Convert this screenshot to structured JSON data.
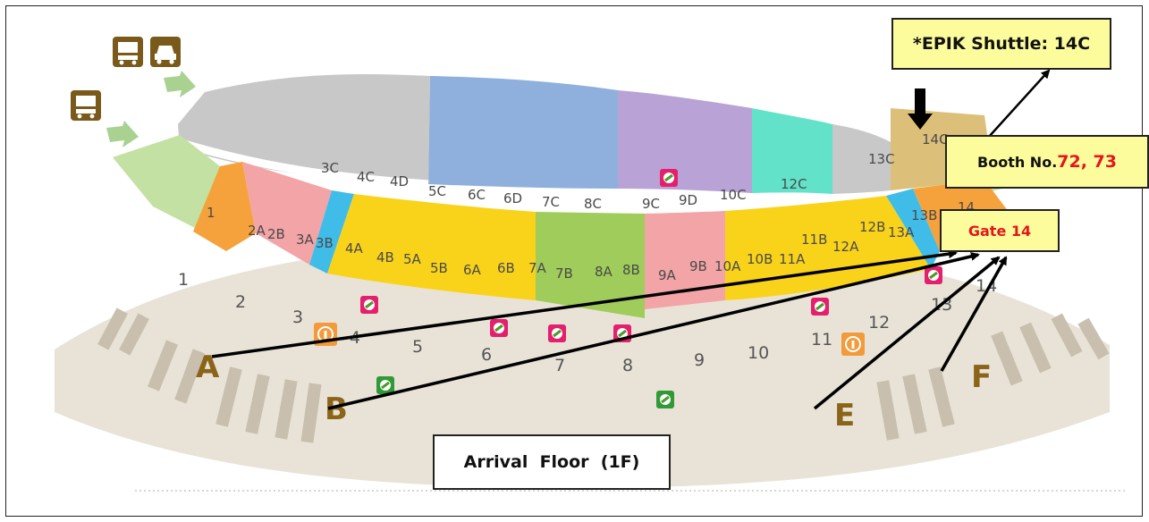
{
  "callouts": {
    "shuttle": "*EPIK Shuttle: 14C",
    "booth_prefix": "Booth No.",
    "booth_numbers": "72, 73",
    "gate": "Gate 14",
    "arrival": "Arrival  Floor  (1F)"
  },
  "zones": {
    "row_c": [
      "3C",
      "4C",
      "4D",
      "5C",
      "6C",
      "6D",
      "7C",
      "8C",
      "9C",
      "9D",
      "10C",
      "12C",
      "13C",
      "14C"
    ],
    "row_main": [
      "1",
      "2A",
      "2B",
      "3A",
      "3B",
      "4A",
      "4B",
      "5A",
      "5B",
      "6A",
      "6B",
      "7A",
      "7B",
      "8A",
      "8B",
      "9A",
      "9B",
      "10A",
      "10B",
      "11A",
      "11B",
      "12A",
      "12B",
      "13A",
      "13B",
      "14"
    ]
  },
  "gates": [
    "1",
    "2",
    "3",
    "4",
    "5",
    "6",
    "7",
    "8",
    "9",
    "10",
    "11",
    "12",
    "13",
    "14"
  ],
  "entrances": [
    "A",
    "B",
    "E",
    "F"
  ],
  "colors": {
    "gray": "#c8c8c8",
    "blue": "#8fb0dd",
    "purple": "#b9a2d6",
    "teal": "#62e3c9",
    "tan": "#dcc07a",
    "green_light": "#c3e1a3",
    "orange": "#f6a23c",
    "pink": "#f2a4a6",
    "cyan": "#3fbde8",
    "yellow": "#f9d31a",
    "green": "#9fcc5a",
    "floor": "#e8e2d6",
    "brown": "#8a6418"
  },
  "icons": [
    "bus-icon",
    "car-icon",
    "info-icon",
    "restroom-icon"
  ]
}
